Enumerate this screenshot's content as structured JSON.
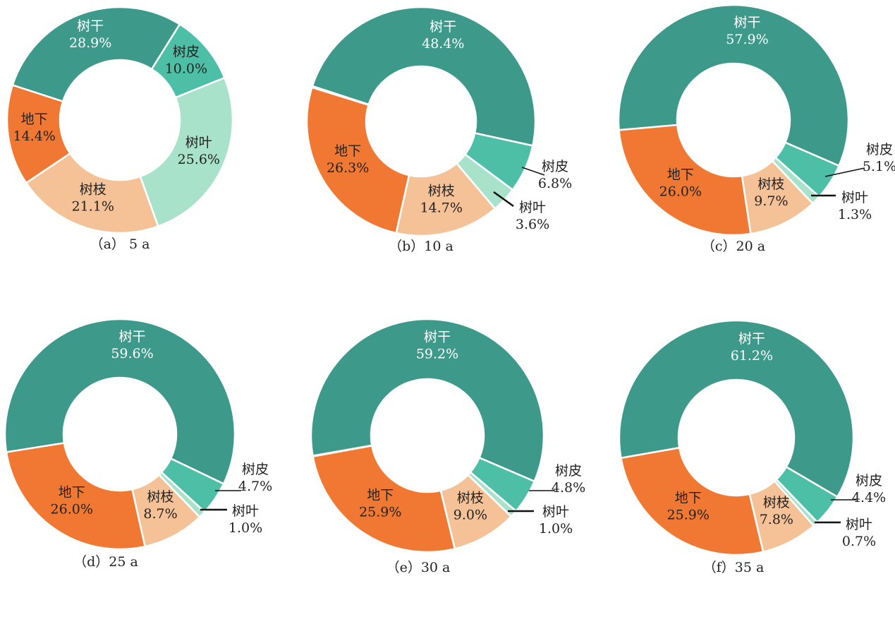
{
  "chart_data": [
    {
      "type": "pie",
      "title": "（a） 5 a",
      "categories": [
        "树干",
        "树皮",
        "树叶",
        "树枝",
        "地下"
      ],
      "values": [
        28.9,
        10.0,
        25.6,
        21.1,
        14.4
      ],
      "labels": [
        "28.9%",
        "10.0%",
        "25.6%",
        "21.1%",
        "14.4%"
      ]
    },
    {
      "type": "pie",
      "title": "（b）10 a",
      "categories": [
        "树干",
        "树皮",
        "树叶",
        "树枝",
        "地下"
      ],
      "values": [
        48.4,
        6.8,
        3.6,
        14.7,
        26.3
      ],
      "labels": [
        "48.4%",
        "6.8%",
        "3.6%",
        "14.7%",
        "26.3%"
      ]
    },
    {
      "type": "pie",
      "title": "（c）20 a",
      "categories": [
        "树干",
        "树皮",
        "树叶",
        "树枝",
        "地下"
      ],
      "values": [
        57.9,
        5.1,
        1.3,
        9.7,
        26.0
      ],
      "labels": [
        "57.9%",
        "5.1%",
        "1.3%",
        "9.7%",
        "26.0%"
      ]
    },
    {
      "type": "pie",
      "title": "（d）25 a",
      "categories": [
        "树干",
        "树皮",
        "树叶",
        "树枝",
        "地下"
      ],
      "values": [
        59.6,
        4.7,
        1.0,
        8.7,
        26.0
      ],
      "labels": [
        "59.6%",
        "4.7%",
        "1.0%",
        "8.7%",
        "26.0%"
      ]
    },
    {
      "type": "pie",
      "title": "（e）30 a",
      "categories": [
        "树干",
        "树皮",
        "树叶",
        "树枝",
        "地下"
      ],
      "values": [
        59.2,
        4.8,
        1.0,
        9.0,
        25.9
      ],
      "labels": [
        "59.2%",
        "4.8%",
        "1.0%",
        "9.0%",
        "25.9%"
      ]
    },
    {
      "type": "pie",
      "title": "（f）35 a",
      "categories": [
        "树干",
        "树皮",
        "树叶",
        "树枝",
        "地下"
      ],
      "values": [
        61.2,
        4.4,
        0.7,
        7.8,
        25.9
      ],
      "labels": [
        "61.2%",
        "4.4%",
        "0.7%",
        "7.8%",
        "25.9%"
      ]
    }
  ],
  "colors": [
    "#3d9a8b",
    "#4cbfa6",
    "#a8e2ca",
    "#f5c196",
    "#f07832"
  ]
}
